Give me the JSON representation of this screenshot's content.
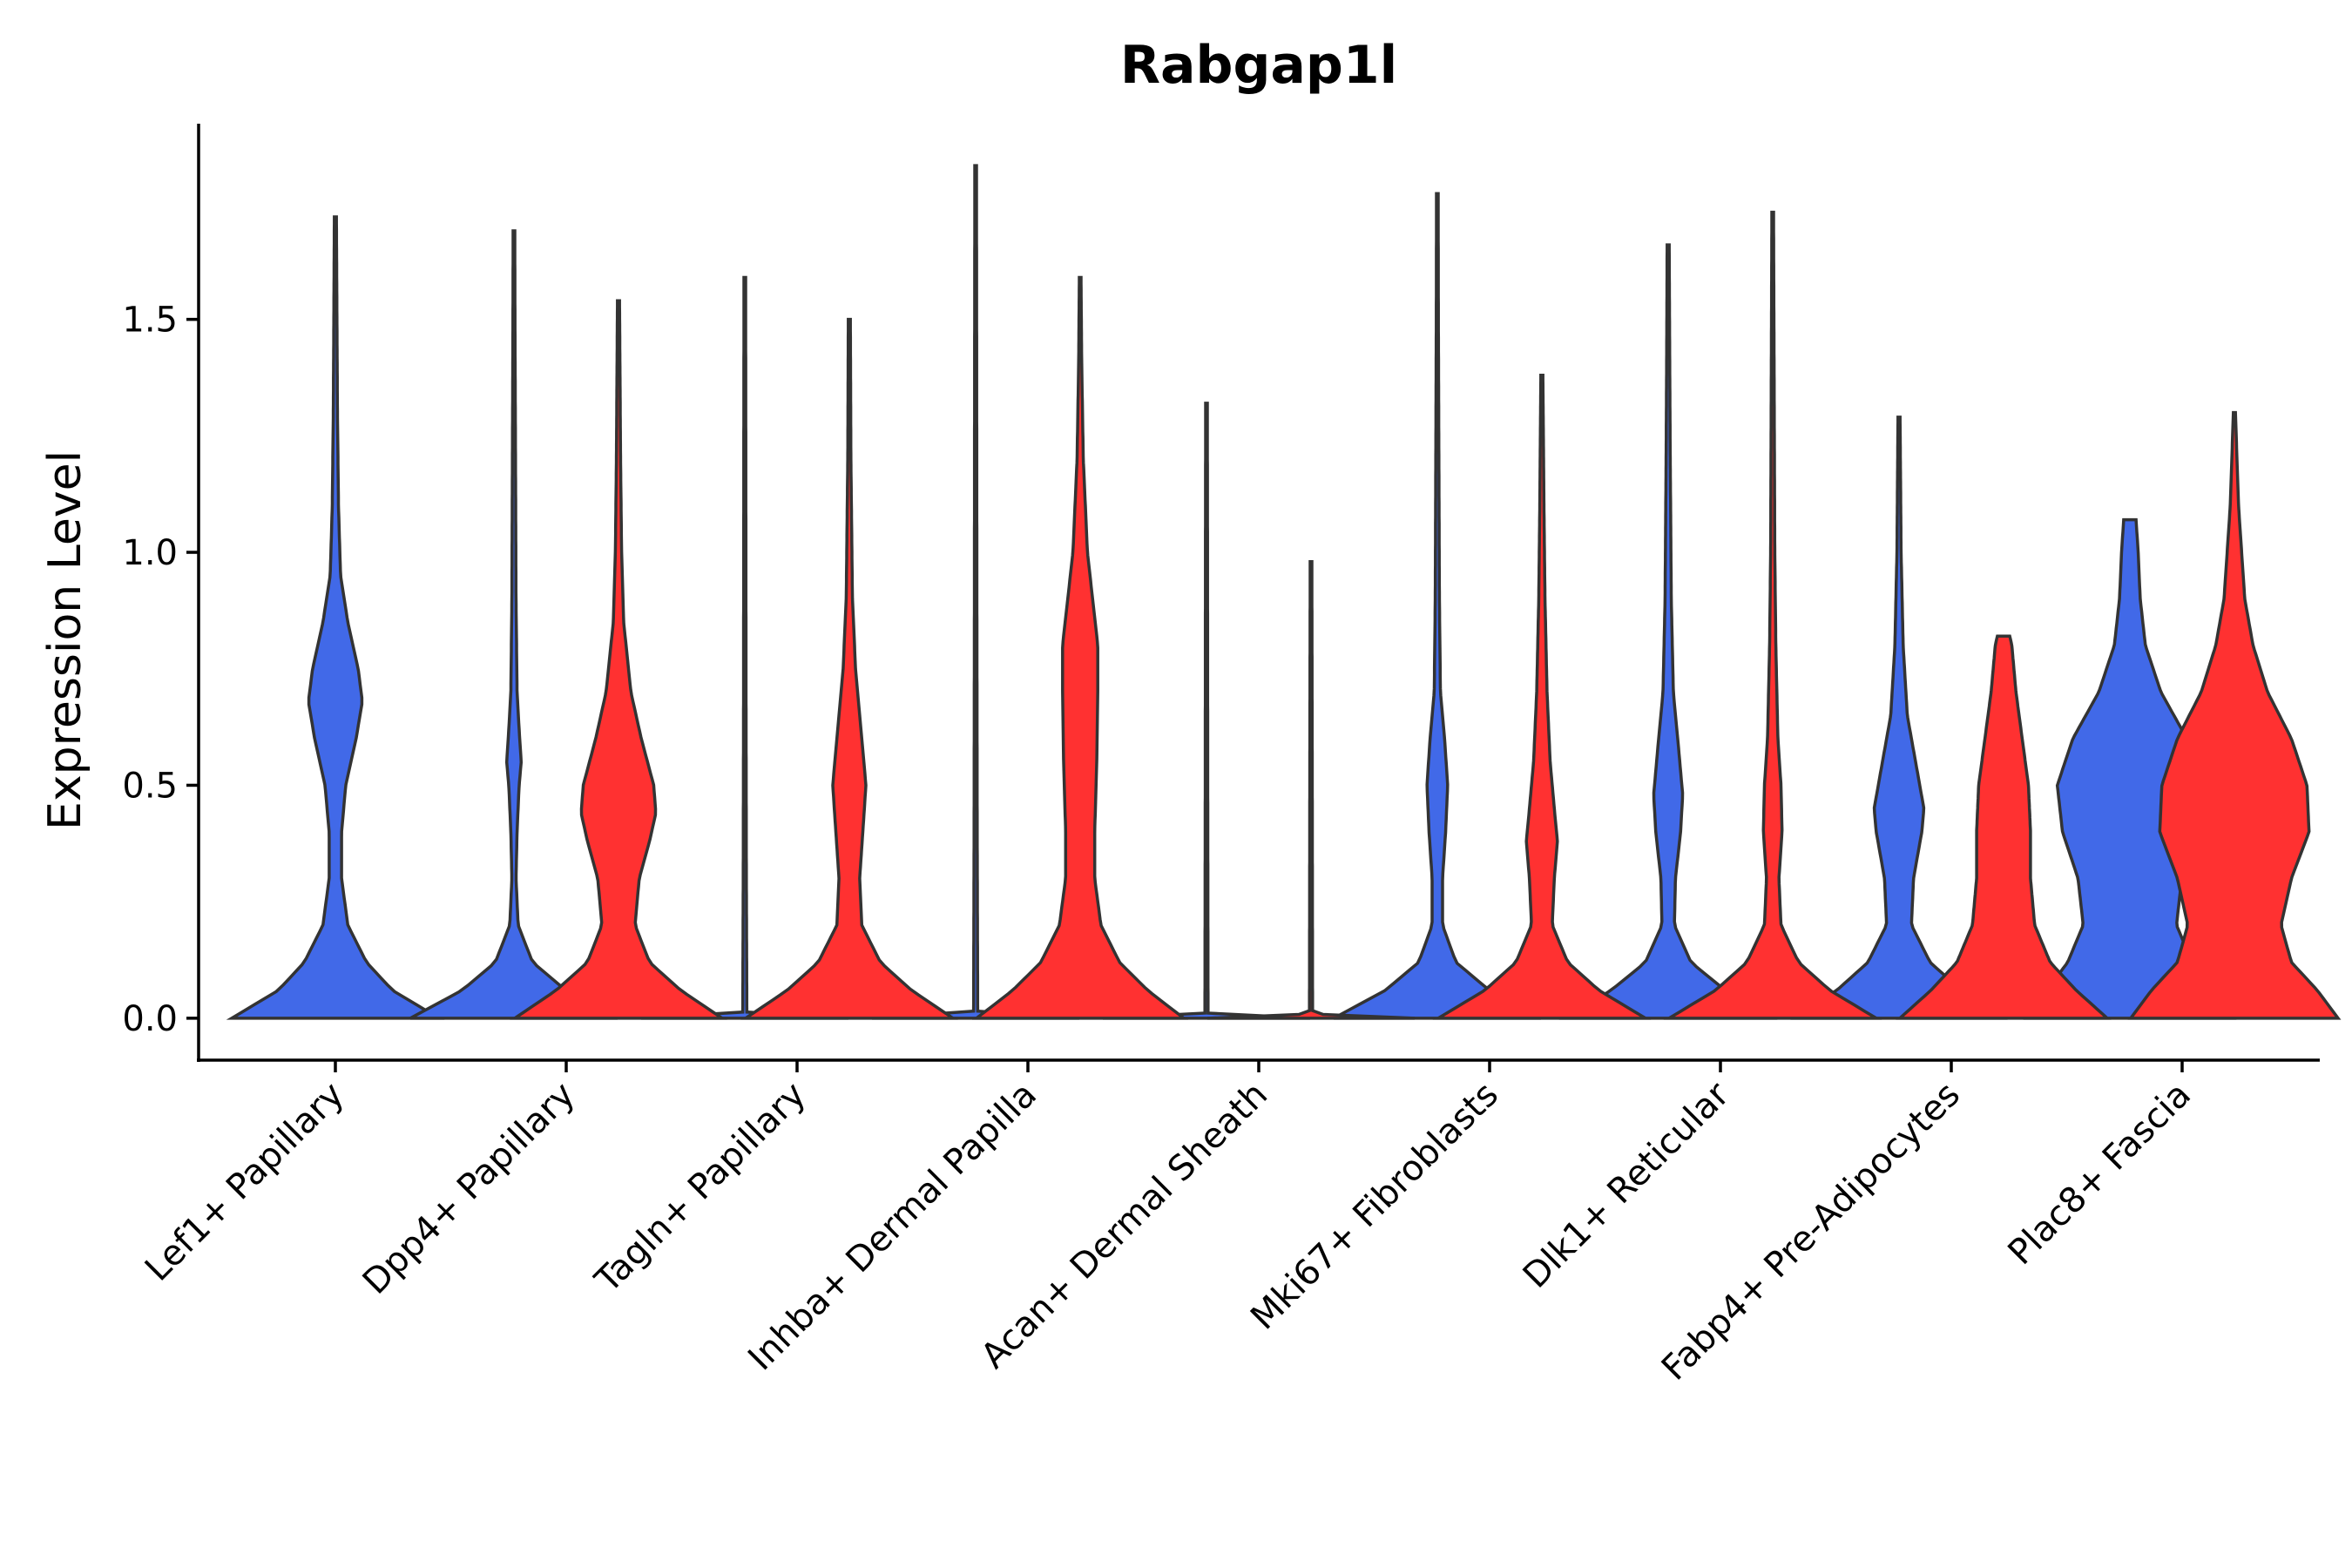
{
  "chart_data": {
    "type": "violin",
    "title": "Rabgap1l",
    "ylabel": "Expression Level",
    "xlabel": "",
    "ylim": [
      -0.09,
      1.92
    ],
    "yticks": [
      0.0,
      0.5,
      1.0,
      1.5
    ],
    "ytick_labels": [
      "0.0",
      "0.5",
      "1.0",
      "1.5"
    ],
    "categories": [
      "Lef1+ Papillary",
      "Dpp4+ Papillary",
      "Tagln+ Papillary",
      "Inhba+ Dermal Papilla",
      "Acan+ Dermal Sheath",
      "Mki67+ Fibroblasts",
      "Dlk1+ Reticular",
      "Fabp4+ Pre-Adipocytes",
      "Plac8+ Fascia"
    ],
    "series": [
      {
        "name": "group-blue",
        "color": "#4169E8",
        "violins": [
          {
            "max": 1.72,
            "profile": [
              [
                0,
                1.0
              ],
              [
                0.06,
                0.55
              ],
              [
                0.12,
                0.3
              ],
              [
                0.2,
                0.12
              ],
              [
                0.3,
                0.06
              ],
              [
                0.4,
                0.06
              ],
              [
                0.5,
                0.1
              ],
              [
                0.6,
                0.2
              ],
              [
                0.68,
                0.26
              ],
              [
                0.75,
                0.22
              ],
              [
                0.85,
                0.12
              ],
              [
                0.95,
                0.05
              ],
              [
                1.1,
                0.03
              ],
              [
                1.3,
                0.02
              ],
              [
                1.5,
                0.015
              ],
              [
                1.72,
                0.01
              ]
            ]
          },
          {
            "max": 1.69,
            "profile": [
              [
                0,
                1.0
              ],
              [
                0.06,
                0.5
              ],
              [
                0.12,
                0.18
              ],
              [
                0.2,
                0.04
              ],
              [
                0.3,
                0.02
              ],
              [
                0.4,
                0.03
              ],
              [
                0.5,
                0.05
              ],
              [
                0.55,
                0.07
              ],
              [
                0.62,
                0.05
              ],
              [
                0.7,
                0.03
              ],
              [
                0.9,
                0.02
              ],
              [
                1.2,
                0.015
              ],
              [
                1.5,
                0.01
              ],
              [
                1.69,
                0.008
              ]
            ]
          },
          {
            "max": 1.59,
            "profile": [
              [
                0,
                1.0
              ],
              [
                0.003,
                0.4
              ],
              [
                0.01,
                0.02
              ],
              [
                0.3,
                0.015
              ],
              [
                0.7,
                0.012
              ],
              [
                1.2,
                0.01
              ],
              [
                1.59,
                0.008
              ]
            ]
          },
          {
            "max": 1.83,
            "profile": [
              [
                0,
                1.0
              ],
              [
                0.003,
                0.4
              ],
              [
                0.01,
                0.02
              ],
              [
                0.4,
                0.015
              ],
              [
                0.9,
                0.012
              ],
              [
                1.4,
                0.01
              ],
              [
                1.83,
                0.008
              ]
            ]
          },
          {
            "max": 1.32,
            "profile": [
              [
                0,
                1.0
              ],
              [
                0.003,
                0.4
              ],
              [
                0.01,
                0.015
              ],
              [
                0.5,
                0.012
              ],
              [
                1.0,
                0.01
              ],
              [
                1.32,
                0.008
              ]
            ]
          },
          {
            "max": 1.77,
            "profile": [
              [
                0,
                1.0
              ],
              [
                0.06,
                0.5
              ],
              [
                0.12,
                0.18
              ],
              [
                0.2,
                0.05
              ],
              [
                0.3,
                0.05
              ],
              [
                0.4,
                0.08
              ],
              [
                0.5,
                0.1
              ],
              [
                0.6,
                0.07
              ],
              [
                0.7,
                0.03
              ],
              [
                0.9,
                0.02
              ],
              [
                1.2,
                0.015
              ],
              [
                1.5,
                0.01
              ],
              [
                1.77,
                0.008
              ]
            ]
          },
          {
            "max": 1.66,
            "profile": [
              [
                0,
                1.0
              ],
              [
                0.06,
                0.55
              ],
              [
                0.12,
                0.22
              ],
              [
                0.2,
                0.06
              ],
              [
                0.3,
                0.07
              ],
              [
                0.4,
                0.12
              ],
              [
                0.48,
                0.14
              ],
              [
                0.58,
                0.1
              ],
              [
                0.7,
                0.05
              ],
              [
                0.9,
                0.03
              ],
              [
                1.2,
                0.02
              ],
              [
                1.4,
                0.015
              ],
              [
                1.66,
                0.01
              ]
            ]
          },
          {
            "max": 1.29,
            "profile": [
              [
                0,
                1.0
              ],
              [
                0.06,
                0.6
              ],
              [
                0.12,
                0.3
              ],
              [
                0.2,
                0.12
              ],
              [
                0.3,
                0.14
              ],
              [
                0.4,
                0.22
              ],
              [
                0.45,
                0.24
              ],
              [
                0.55,
                0.16
              ],
              [
                0.65,
                0.08
              ],
              [
                0.8,
                0.04
              ],
              [
                1.0,
                0.02
              ],
              [
                1.29,
                0.01
              ]
            ]
          },
          {
            "max": 1.07,
            "profile": [
              [
                0,
                1.0
              ],
              [
                0.06,
                0.8
              ],
              [
                0.12,
                0.6
              ],
              [
                0.2,
                0.45
              ],
              [
                0.3,
                0.5
              ],
              [
                0.4,
                0.65
              ],
              [
                0.5,
                0.7
              ],
              [
                0.6,
                0.55
              ],
              [
                0.7,
                0.3
              ],
              [
                0.8,
                0.15
              ],
              [
                0.9,
                0.1
              ],
              [
                1.0,
                0.08
              ],
              [
                1.07,
                0.06
              ]
            ]
          }
        ]
      },
      {
        "name": "group-red",
        "color": "#FF3131",
        "violins": [
          null,
          {
            "max": 1.54,
            "profile": [
              [
                0,
                1.0
              ],
              [
                0.06,
                0.6
              ],
              [
                0.12,
                0.3
              ],
              [
                0.2,
                0.16
              ],
              [
                0.3,
                0.2
              ],
              [
                0.38,
                0.3
              ],
              [
                0.44,
                0.36
              ],
              [
                0.5,
                0.34
              ],
              [
                0.6,
                0.22
              ],
              [
                0.7,
                0.12
              ],
              [
                0.85,
                0.05
              ],
              [
                1.0,
                0.03
              ],
              [
                1.2,
                0.02
              ],
              [
                1.54,
                0.01
              ]
            ]
          },
          {
            "max": 1.5,
            "profile": [
              [
                0,
                1.0
              ],
              [
                0.06,
                0.6
              ],
              [
                0.12,
                0.3
              ],
              [
                0.2,
                0.12
              ],
              [
                0.3,
                0.1
              ],
              [
                0.4,
                0.13
              ],
              [
                0.5,
                0.16
              ],
              [
                0.6,
                0.12
              ],
              [
                0.75,
                0.06
              ],
              [
                0.9,
                0.03
              ],
              [
                1.2,
                0.015
              ],
              [
                1.5,
                0.01
              ]
            ]
          },
          {
            "max": 1.59,
            "profile": [
              [
                0,
                1.0
              ],
              [
                0.06,
                0.65
              ],
              [
                0.12,
                0.38
              ],
              [
                0.2,
                0.2
              ],
              [
                0.3,
                0.14
              ],
              [
                0.4,
                0.14
              ],
              [
                0.55,
                0.16
              ],
              [
                0.7,
                0.17
              ],
              [
                0.8,
                0.17
              ],
              [
                0.9,
                0.12
              ],
              [
                1.0,
                0.07
              ],
              [
                1.2,
                0.03
              ],
              [
                1.4,
                0.015
              ],
              [
                1.59,
                0.008
              ]
            ]
          },
          {
            "max": 0.98,
            "profile": [
              [
                0,
                1.0
              ],
              [
                0.003,
                0.4
              ],
              [
                0.01,
                0.015
              ],
              [
                0.5,
                0.012
              ],
              [
                0.98,
                0.008
              ]
            ]
          },
          {
            "max": 1.38,
            "profile": [
              [
                0,
                1.0
              ],
              [
                0.06,
                0.55
              ],
              [
                0.12,
                0.25
              ],
              [
                0.2,
                0.1
              ],
              [
                0.3,
                0.12
              ],
              [
                0.38,
                0.15
              ],
              [
                0.45,
                0.12
              ],
              [
                0.55,
                0.08
              ],
              [
                0.7,
                0.05
              ],
              [
                0.9,
                0.03
              ],
              [
                1.1,
                0.02
              ],
              [
                1.38,
                0.01
              ]
            ]
          },
          {
            "max": 1.73,
            "profile": [
              [
                0,
                1.0
              ],
              [
                0.06,
                0.55
              ],
              [
                0.12,
                0.25
              ],
              [
                0.2,
                0.08
              ],
              [
                0.3,
                0.06
              ],
              [
                0.4,
                0.09
              ],
              [
                0.5,
                0.08
              ],
              [
                0.6,
                0.05
              ],
              [
                0.8,
                0.03
              ],
              [
                1.0,
                0.02
              ],
              [
                1.3,
                0.015
              ],
              [
                1.73,
                0.008
              ]
            ]
          },
          {
            "max": 0.82,
            "profile": [
              [
                0,
                1.0
              ],
              [
                0.06,
                0.7
              ],
              [
                0.12,
                0.45
              ],
              [
                0.2,
                0.3
              ],
              [
                0.3,
                0.26
              ],
              [
                0.4,
                0.26
              ],
              [
                0.5,
                0.24
              ],
              [
                0.6,
                0.18
              ],
              [
                0.7,
                0.12
              ],
              [
                0.8,
                0.08
              ],
              [
                0.82,
                0.06
              ]
            ]
          },
          {
            "max": 1.3,
            "profile": [
              [
                0,
                1.0
              ],
              [
                0.06,
                0.8
              ],
              [
                0.12,
                0.55
              ],
              [
                0.2,
                0.45
              ],
              [
                0.3,
                0.55
              ],
              [
                0.4,
                0.72
              ],
              [
                0.5,
                0.7
              ],
              [
                0.6,
                0.55
              ],
              [
                0.7,
                0.32
              ],
              [
                0.8,
                0.18
              ],
              [
                0.9,
                0.1
              ],
              [
                1.0,
                0.07
              ],
              [
                1.1,
                0.04
              ],
              [
                1.3,
                0.01
              ]
            ]
          }
        ]
      }
    ]
  }
}
